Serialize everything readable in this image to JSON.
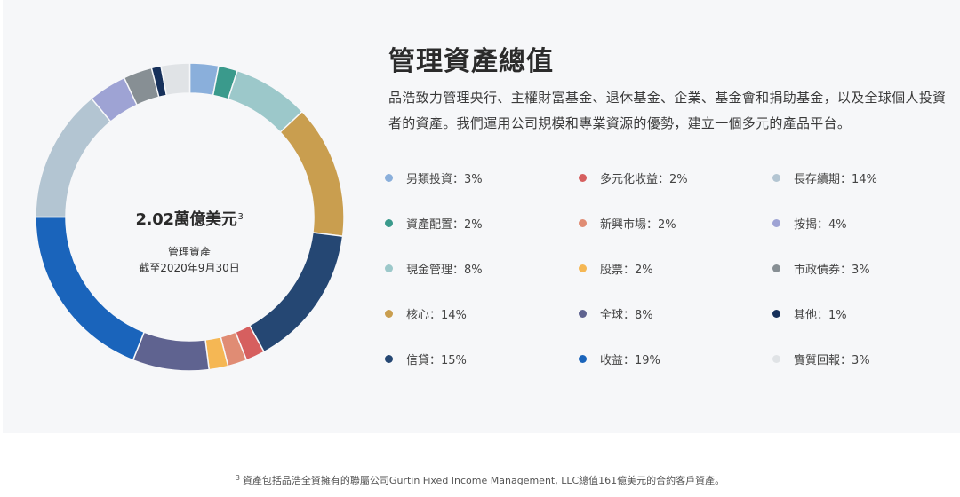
{
  "header": {
    "title": "管理資產總值",
    "description": "品浩致力管理央行、主權財富基金、退休基金、企業、基金會和捐助基金，以及全球個人投資者的資產。我們運用公司規模和專業資源的優勢，建立一個多元的產品平台。"
  },
  "center": {
    "value": "2.02萬億美元",
    "value_sup": "3",
    "label": "管理資產",
    "date": "截至2020年9月30日"
  },
  "footnote": {
    "marker": "3",
    "text": "資產包括品浩全資擁有的聯屬公司Gurtin Fixed Income Management, LLC總值161億美元的合約客戶資產。"
  },
  "legend": {
    "separator": "：",
    "columns": [
      [
        {
          "label": "另類投資",
          "value": "3%",
          "color": "#8aafdb"
        },
        {
          "label": "資產配置",
          "value": "2%",
          "color": "#3a9a8c"
        },
        {
          "label": "現金管理",
          "value": "8%",
          "color": "#9cc8ca"
        },
        {
          "label": "核心",
          "value": "14%",
          "color": "#c99e4f"
        },
        {
          "label": "信貸",
          "value": "15%",
          "color": "#254773"
        }
      ],
      [
        {
          "label": "多元化收益",
          "value": "2%",
          "color": "#d65f5f"
        },
        {
          "label": "新興市場",
          "value": "2%",
          "color": "#e08c74"
        },
        {
          "label": "股票",
          "value": "2%",
          "color": "#f5b754"
        },
        {
          "label": "全球",
          "value": "8%",
          "color": "#5f6390"
        },
        {
          "label": "收益",
          "value": "19%",
          "color": "#1a64bb"
        }
      ],
      [
        {
          "label": "長存續期",
          "value": "14%",
          "color": "#b3c5d2"
        },
        {
          "label": "按揭",
          "value": "4%",
          "color": "#9ea3d4"
        },
        {
          "label": "市政債券",
          "value": "3%",
          "color": "#878f94"
        },
        {
          "label": "其他",
          "value": "1%",
          "color": "#16305a"
        },
        {
          "label": "實質回報",
          "value": "3%",
          "color": "#e0e3e6"
        }
      ]
    ]
  },
  "chart_data": {
    "type": "pie",
    "variant": "donut",
    "title": "管理資產總值",
    "center_text": "2.02萬億美元 管理資產 截至2020年9月30日",
    "unit": "%",
    "start_angle": "12 o'clock, clockwise",
    "categories": [
      "另類投資",
      "資產配置",
      "現金管理",
      "核心",
      "信貸",
      "多元化收益",
      "新興市場",
      "股票",
      "全球",
      "收益",
      "長存續期",
      "按揭",
      "市政債券",
      "其他",
      "實質回報"
    ],
    "values": [
      3,
      2,
      8,
      14,
      15,
      2,
      2,
      2,
      8,
      19,
      14,
      4,
      3,
      1,
      3
    ],
    "colors": [
      "#8aafdb",
      "#3a9a8c",
      "#9cc8ca",
      "#c99e4f",
      "#254773",
      "#d65f5f",
      "#e08c74",
      "#f5b754",
      "#5f6390",
      "#1a64bb",
      "#b3c5d2",
      "#9ea3d4",
      "#878f94",
      "#16305a",
      "#e0e3e6"
    ],
    "legend_position": "right"
  }
}
